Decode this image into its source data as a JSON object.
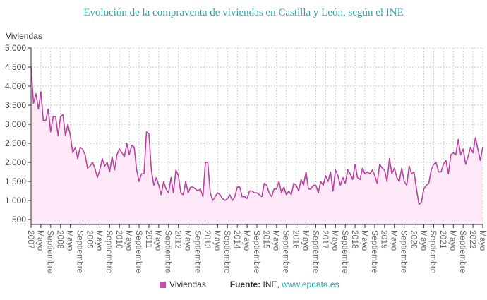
{
  "chart_data": {
    "type": "area",
    "title": "Evolución de la compraventa de viviendas en Castilla y León, según el INE",
    "ylabel": "Viviendas",
    "xlabel": "",
    "ylim": [
      370,
      5000
    ],
    "yticks": [
      500,
      1000,
      1500,
      2000,
      2500,
      3000,
      3500,
      4000,
      4500,
      5000
    ],
    "ytick_labels": [
      "500",
      "1.000",
      "1.500",
      "2.000",
      "2.500",
      "3.000",
      "3.500",
      "4.000",
      "4.500",
      "5.000"
    ],
    "x_start": "2007-01",
    "x_end": "2022-05",
    "x_frequency": "monthly",
    "xtick_labels": [
      "2007",
      "Mayo",
      "Septiembre",
      "2008",
      "Mayo",
      "Septiembre",
      "2009",
      "Mayo",
      "Septiembre",
      "2010",
      "Mayo",
      "Septiembre",
      "2011",
      "Mayo",
      "Septiembre",
      "2012",
      "Mayo",
      "Septiembre",
      "2013",
      "Mayo",
      "Septiembre",
      "2014",
      "Mayo",
      "Septiembre",
      "2015",
      "Mayo",
      "Septiembre",
      "2016",
      "Mayo",
      "Septiembre",
      "2017",
      "Mayo",
      "Septiembre",
      "2018",
      "Mayo",
      "Septiembre",
      "2019",
      "Mayo",
      "Septiembre",
      "2020",
      "Mayo",
      "Septiembre",
      "2021",
      "Mayo",
      "Septiembre",
      "2022",
      "Mayo"
    ],
    "grid": true,
    "legend_placement": "bottom",
    "series": [
      {
        "name": "Viviendas",
        "color": "#b8449f",
        "fill": "#fce8f6",
        "values": [
          4500,
          3550,
          3800,
          3400,
          3850,
          3100,
          3100,
          3400,
          2800,
          3200,
          3200,
          2700,
          3200,
          3250,
          2700,
          3000,
          2700,
          2250,
          2400,
          2100,
          2400,
          2350,
          2200,
          1850,
          1900,
          2000,
          1850,
          1600,
          1800,
          2100,
          1900,
          2000,
          1750,
          2150,
          1800,
          2200,
          2350,
          2250,
          2150,
          2500,
          2200,
          2450,
          2400,
          1800,
          1500,
          1700,
          1700,
          2800,
          2750,
          1800,
          1400,
          1600,
          1400,
          1150,
          1500,
          1300,
          1200,
          1600,
          1200,
          1800,
          1650,
          1200,
          1150,
          1500,
          1200,
          1350,
          1350,
          1300,
          1250,
          1300,
          1100,
          2000,
          2000,
          1200,
          1000,
          1100,
          1200,
          1150,
          1050,
          1000,
          1050,
          1150,
          1000,
          1100,
          1350,
          1350,
          1100,
          1100,
          1050,
          1250,
          1250,
          1200,
          1200,
          1150,
          1100,
          1450,
          1400,
          1200,
          1100,
          1300,
          1300,
          1500,
          1200,
          1350,
          1150,
          1250,
          1150,
          1450,
          1400,
          1250,
          1550,
          1400,
          1750,
          1300,
          1300,
          1400,
          1400,
          1200,
          1500,
          1400,
          1650,
          1500,
          1750,
          1250,
          1800,
          1650,
          1400,
          1600,
          1450,
          1800,
          1700,
          1550,
          1950,
          1600,
          1550,
          1850,
          1700,
          1750,
          1700,
          1800,
          1650,
          1450,
          1950,
          1850,
          1800,
          1500,
          2100,
          1700,
          1850,
          1600,
          1500,
          1850,
          1500,
          1400,
          1900,
          1700,
          1750,
          1300,
          900,
          950,
          1300,
          1400,
          1450,
          1800,
          1950,
          2000,
          1750,
          1750,
          1950,
          2050,
          1700,
          2200,
          2250,
          2200,
          2600,
          2200,
          2350,
          1950,
          2150,
          2400,
          2250,
          2650,
          2350,
          2050,
          2400
        ]
      }
    ]
  },
  "legend": {
    "series_label": "Viviendas",
    "source_label": "Fuente:",
    "source_text": "INE,",
    "source_link": "www.epdata.es"
  }
}
